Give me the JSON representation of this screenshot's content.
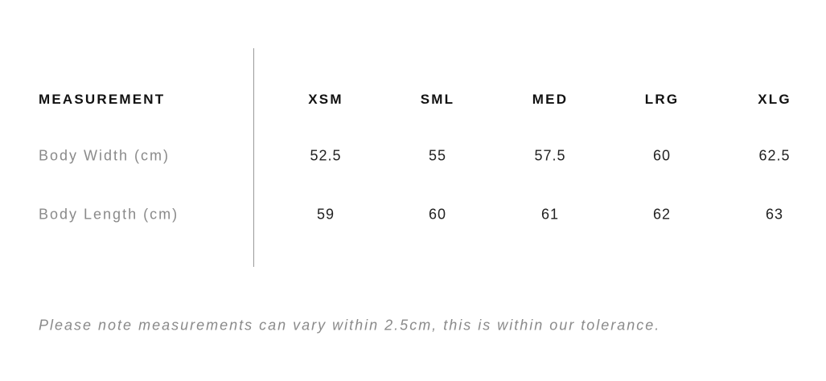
{
  "table": {
    "header_label": "MEASUREMENT",
    "sizes": [
      "XSM",
      "SML",
      "MED",
      "LRG",
      "XLG"
    ],
    "rows": [
      {
        "label": "Body Width (cm)",
        "values": [
          "52.5",
          "55",
          "57.5",
          "60",
          "62.5"
        ]
      },
      {
        "label": "Body Length (cm)",
        "values": [
          "59",
          "60",
          "61",
          "62",
          "63"
        ]
      }
    ]
  },
  "note": "Please note measurements can vary within 2.5cm, this is within our tolerance."
}
